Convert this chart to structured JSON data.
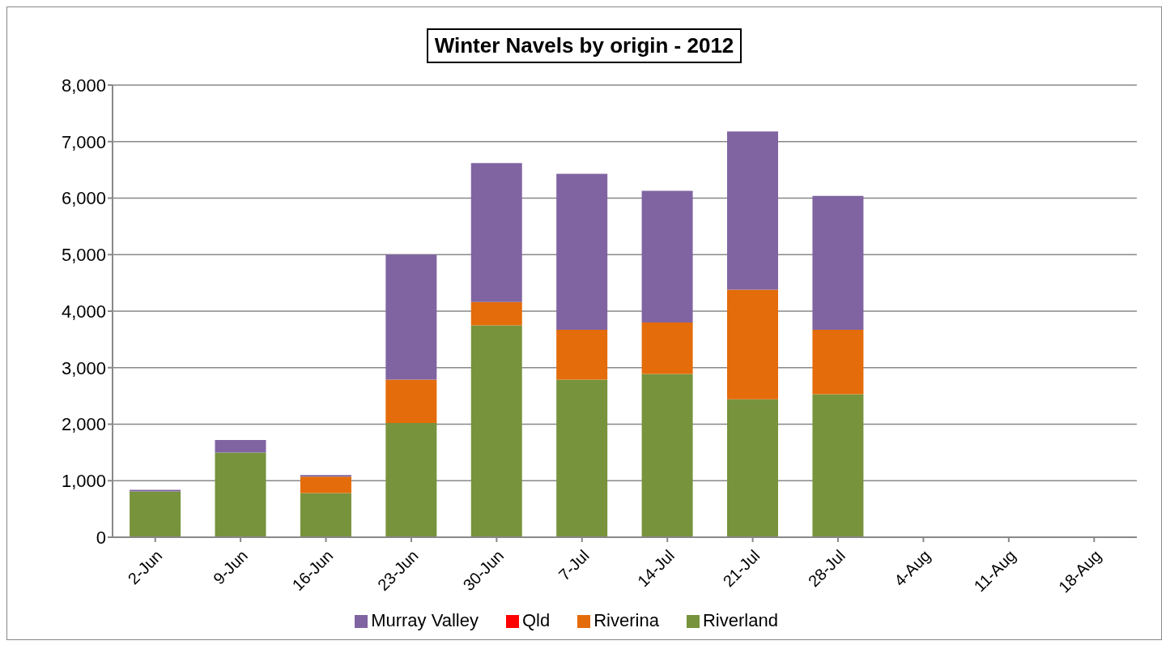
{
  "chart_data": {
    "type": "bar",
    "title": "Winter Navels by origin - 2012",
    "stacked": true,
    "categories": [
      "2-Jun",
      "9-Jun",
      "16-Jun",
      "23-Jun",
      "30-Jun",
      "7-Jul",
      "14-Jul",
      "21-Jul",
      "28-Jul",
      "4-Aug",
      "11-Aug",
      "18-Aug"
    ],
    "series": [
      {
        "name": "Qld",
        "color": "#ff0000",
        "values": [
          0,
          0,
          0,
          0,
          0,
          0,
          0,
          0,
          0,
          null,
          null,
          null
        ]
      },
      {
        "name": "Riverland",
        "color": "#77933c",
        "values": [
          810,
          1500,
          780,
          2020,
          3750,
          2790,
          2890,
          2440,
          2530,
          null,
          null,
          null
        ]
      },
      {
        "name": "Riverina",
        "color": "#e46c0a",
        "values": [
          0,
          0,
          290,
          770,
          410,
          880,
          910,
          1940,
          1140,
          null,
          null,
          null
        ]
      },
      {
        "name": "Murray Valley",
        "color": "#8064a2",
        "values": [
          30,
          220,
          30,
          2210,
          2460,
          2760,
          2330,
          2800,
          2370,
          null,
          null,
          null
        ]
      }
    ],
    "ylim": [
      0,
      8000
    ],
    "yticks": [
      {
        "value": 0,
        "label": "0"
      },
      {
        "value": 1000,
        "label": "1,000"
      },
      {
        "value": 2000,
        "label": "2,000"
      },
      {
        "value": 3000,
        "label": "3,000"
      },
      {
        "value": 4000,
        "label": "4,000"
      },
      {
        "value": 5000,
        "label": "5,000"
      },
      {
        "value": 6000,
        "label": "6,000"
      },
      {
        "value": 7000,
        "label": "7,000"
      },
      {
        "value": 8000,
        "label": "8,000"
      }
    ],
    "grid": "y",
    "legend": "bottom"
  }
}
